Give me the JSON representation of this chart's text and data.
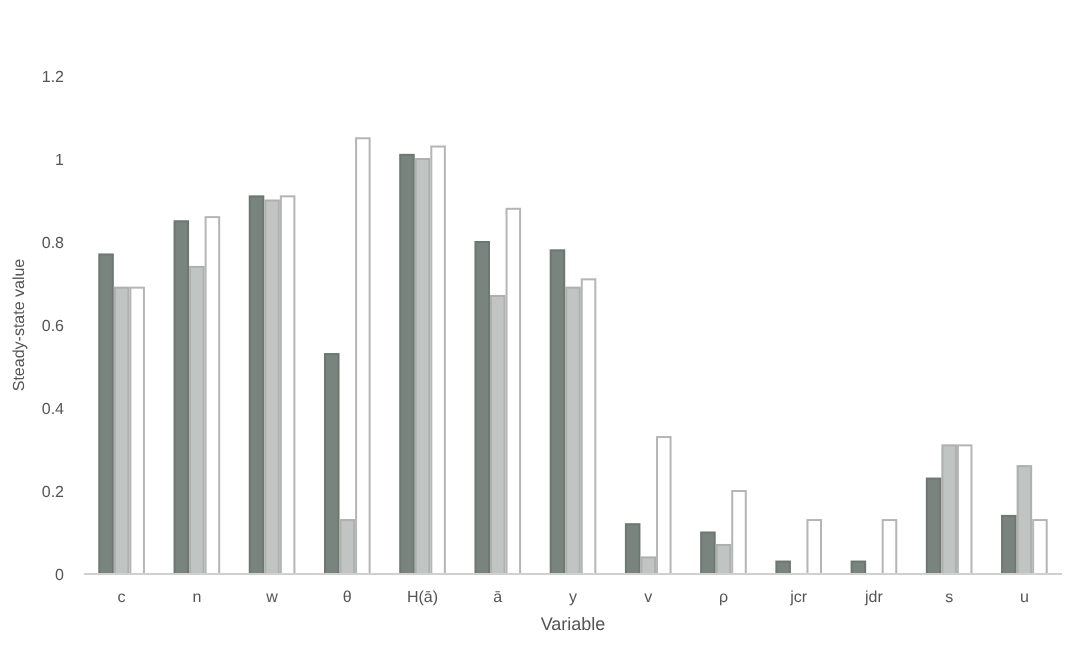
{
  "chart_data": {
    "type": "bar",
    "xlabel": "Variable",
    "ylabel": "Steady-state value",
    "categories": [
      "c",
      "n",
      "w",
      "θ",
      "H(ā)",
      "ā",
      "y",
      "v",
      "ρ",
      "jcr",
      "jdr",
      "s",
      "u"
    ],
    "series": [
      {
        "color": "#7a847f",
        "values": [
          0.77,
          0.85,
          0.91,
          0.53,
          1.01,
          0.8,
          0.78,
          0.12,
          0.1,
          0.03,
          0.03,
          0.23,
          0.14
        ]
      },
      {
        "color": "#c0c4c3",
        "values": [
          0.69,
          0.74,
          0.9,
          0.13,
          1.0,
          0.67,
          0.69,
          0.04,
          0.07,
          0,
          0,
          0.31,
          0.26
        ]
      },
      {
        "color": "#ffffff",
        "values": [
          0.69,
          0.86,
          0.91,
          1.05,
          1.03,
          0.88,
          0.71,
          0.33,
          0.2,
          0.13,
          0.13,
          0.31,
          0.13
        ]
      }
    ],
    "ylim": [
      0,
      1.2
    ],
    "yticks": [
      0,
      0.2,
      0.4,
      0.6,
      0.8,
      1,
      1.2
    ],
    "grid": false
  }
}
